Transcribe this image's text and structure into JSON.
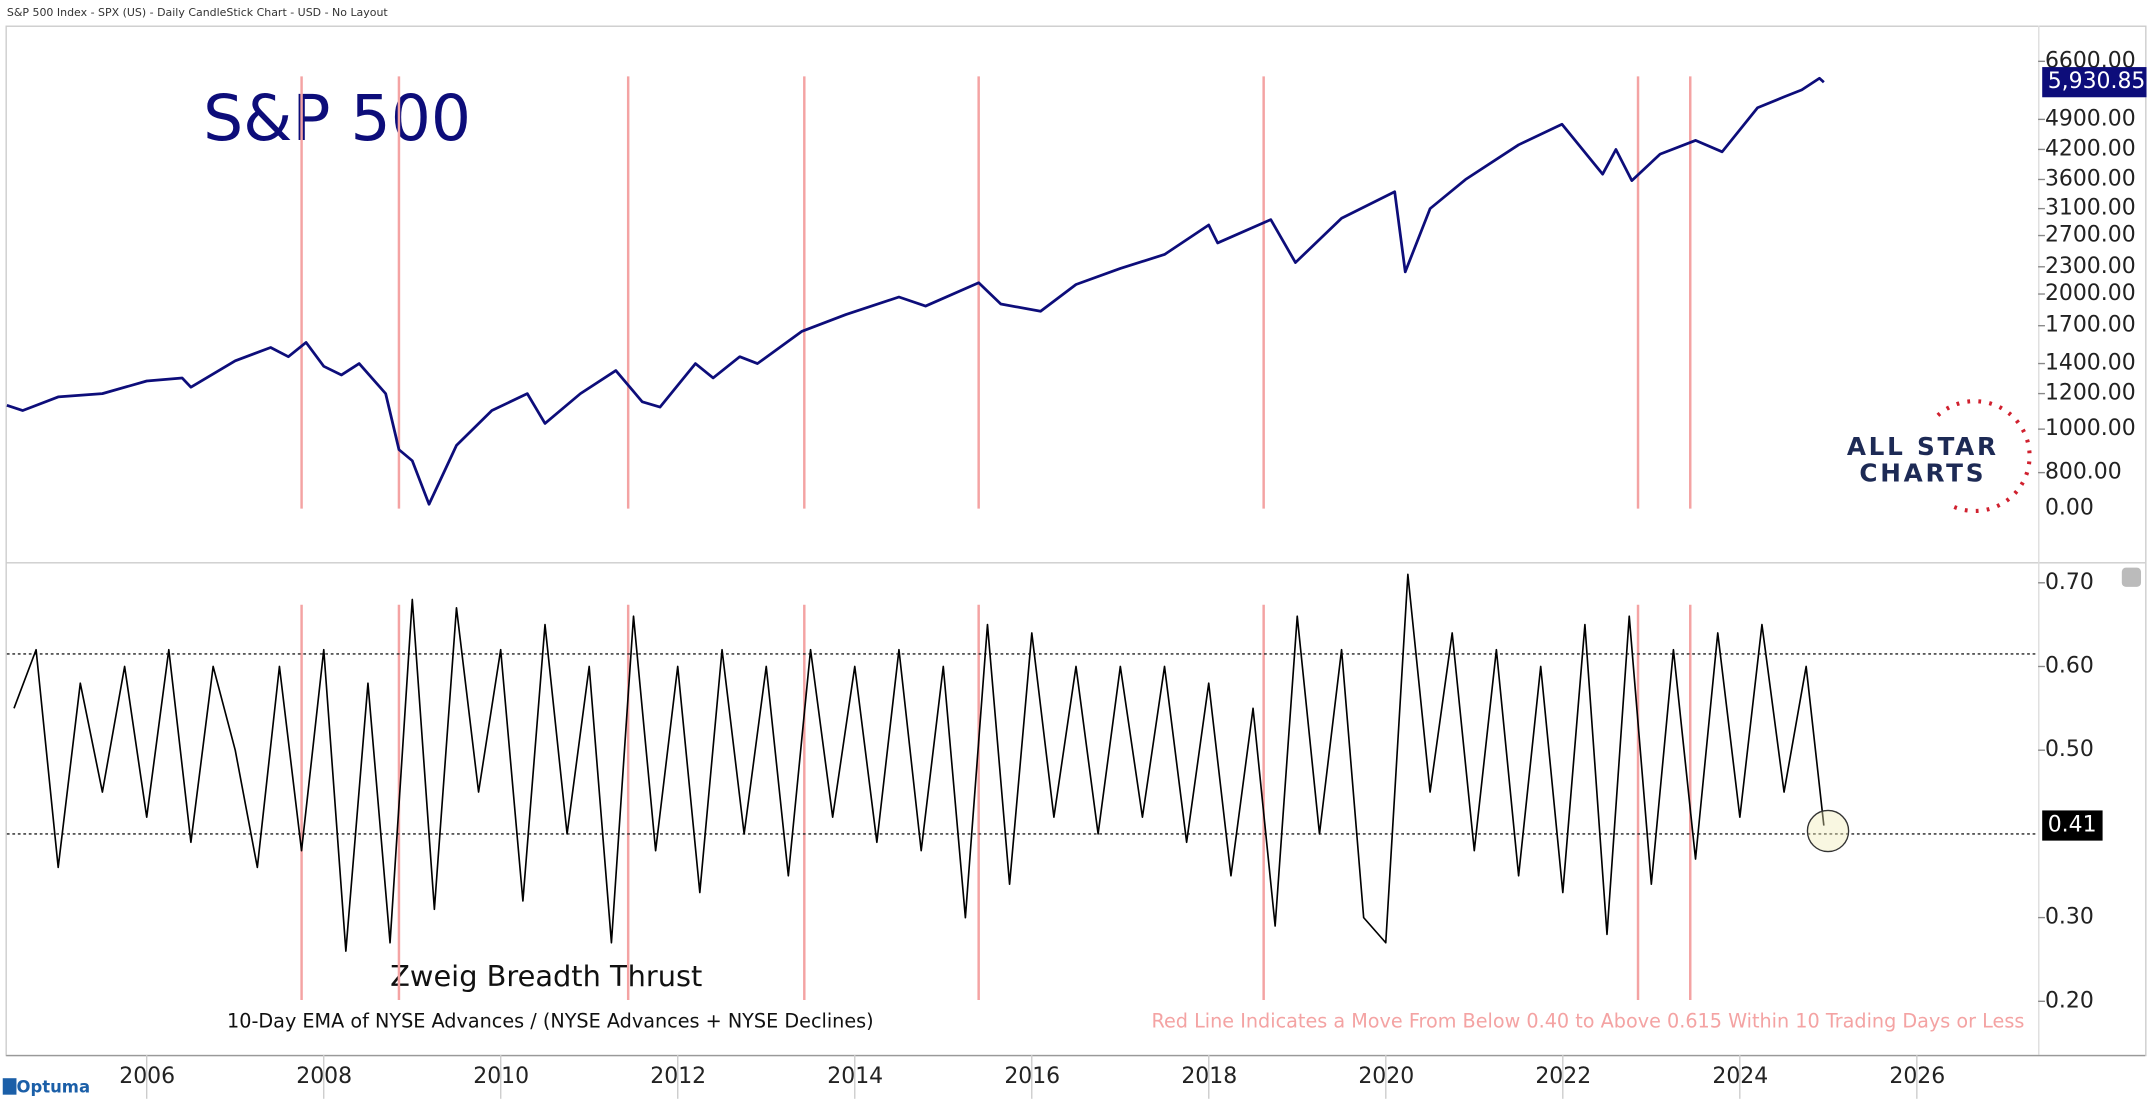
{
  "header": "S&P 500 Index - SPX (US) - Daily CandleStick Chart - USD - No Layout",
  "logo": {
    "line1": "ALL STAR",
    "line2": "CHARTS"
  },
  "brand": "Optuma",
  "chart_data": [
    {
      "type": "line",
      "title": "S&P 500",
      "color": "#0d0d7a",
      "log_scale": true,
      "xlim": [
        2004.42,
        2027.37
      ],
      "ylim": [
        665,
        8100
      ],
      "yticks": [
        {
          "value": 6600,
          "label": "6600.00"
        },
        {
          "value": 4900,
          "label": "4900.00"
        },
        {
          "value": 4200,
          "label": "4200.00"
        },
        {
          "value": 3600,
          "label": "3600.00"
        },
        {
          "value": 3100,
          "label": "3100.00"
        },
        {
          "value": 2700,
          "label": "2700.00"
        },
        {
          "value": 2300,
          "label": "2300.00"
        },
        {
          "value": 2000,
          "label": "2000.00"
        },
        {
          "value": 1700,
          "label": "1700.00"
        },
        {
          "value": 1400,
          "label": "1400.00"
        },
        {
          "value": 1200,
          "label": "1200.00"
        },
        {
          "value": 1000,
          "label": "1000.00"
        },
        {
          "value": 800,
          "label": "800.00"
        }
      ],
      "axis_floor_label": "0.00",
      "last_value": 5930.85,
      "last_value_label": "5,930.85",
      "event_x": [
        2007.75,
        2008.85,
        2011.44,
        2013.43,
        2015.4,
        2018.62,
        2022.85,
        2023.44
      ],
      "event_color": "#f4a3a3",
      "x": [
        2004.42,
        2004.6,
        2005,
        2005.5,
        2006,
        2006.4,
        2006.5,
        2007,
        2007.4,
        2007.6,
        2007.8,
        2008,
        2008.2,
        2008.4,
        2008.7,
        2008.85,
        2009.0,
        2009.19,
        2009.5,
        2009.9,
        2010.3,
        2010.5,
        2010.9,
        2011.3,
        2011.6,
        2011.8,
        2012.2,
        2012.4,
        2012.7,
        2012.9,
        2013.4,
        2013.9,
        2014.5,
        2014.8,
        2015.4,
        2015.65,
        2016.1,
        2016.5,
        2017,
        2017.5,
        2018.0,
        2018.1,
        2018.7,
        2018.98,
        2019.5,
        2020.1,
        2020.22,
        2020.5,
        2020.9,
        2021.5,
        2021.99,
        2022.45,
        2022.6,
        2022.78,
        2023.1,
        2023.5,
        2023.8,
        2024.2,
        2024.5,
        2024.7,
        2024.9,
        2024.95
      ],
      "values": [
        1130,
        1100,
        1180,
        1200,
        1280,
        1300,
        1240,
        1420,
        1520,
        1450,
        1560,
        1380,
        1320,
        1400,
        1200,
        900,
        850,
        680,
        920,
        1100,
        1200,
        1030,
        1200,
        1350,
        1150,
        1120,
        1400,
        1300,
        1450,
        1400,
        1650,
        1800,
        1970,
        1880,
        2120,
        1900,
        1830,
        2100,
        2280,
        2450,
        2850,
        2600,
        2930,
        2350,
        2950,
        3380,
        2240,
        3100,
        3600,
        4300,
        4780,
        3700,
        4200,
        3580,
        4100,
        4400,
        4150,
        5200,
        5500,
        5700,
        6050,
        5930
      ]
    },
    {
      "type": "line",
      "title": "Zweig Breadth Thrust",
      "subtitle": "10-Day EMA of NYSE Advances / (NYSE Advances + NYSE Declines)",
      "annotation": "Red Line Indicates a Move From Below 0.40 to Above 0.615 Within 10 Trading Days or Less",
      "color": "#000000",
      "xlim": [
        2004.42,
        2027.37
      ],
      "xticks": [
        2006,
        2008,
        2010,
        2012,
        2014,
        2016,
        2018,
        2020,
        2022,
        2024,
        2026
      ],
      "ylim": [
        0.136,
        0.723
      ],
      "yticks": [
        {
          "value": 0.7,
          "label": "0.70"
        },
        {
          "value": 0.6,
          "label": "0.60"
        },
        {
          "value": 0.5,
          "label": "0.50"
        },
        {
          "value": 0.3,
          "label": "0.30"
        },
        {
          "value": 0.2,
          "label": "0.20"
        }
      ],
      "thresholds": [
        0.615,
        0.4
      ],
      "last_value": 0.41,
      "last_value_label": "0.41",
      "x": [
        2004.5,
        2004.75,
        2005,
        2005.25,
        2005.5,
        2005.75,
        2006,
        2006.25,
        2006.5,
        2006.75,
        2007,
        2007.25,
        2007.5,
        2007.75,
        2008,
        2008.25,
        2008.5,
        2008.75,
        2009,
        2009.25,
        2009.5,
        2009.75,
        2010,
        2010.25,
        2010.5,
        2010.75,
        2011,
        2011.25,
        2011.5,
        2011.75,
        2012,
        2012.25,
        2012.5,
        2012.75,
        2013,
        2013.25,
        2013.5,
        2013.75,
        2014,
        2014.25,
        2014.5,
        2014.75,
        2015,
        2015.25,
        2015.5,
        2015.75,
        2016,
        2016.25,
        2016.5,
        2016.75,
        2017,
        2017.25,
        2017.5,
        2017.75,
        2018,
        2018.25,
        2018.5,
        2018.75,
        2019,
        2019.25,
        2019.5,
        2019.75,
        2020,
        2020.25,
        2020.5,
        2020.75,
        2021,
        2021.25,
        2021.5,
        2021.75,
        2022,
        2022.25,
        2022.5,
        2022.75,
        2023,
        2023.25,
        2023.5,
        2023.75,
        2024,
        2024.25,
        2024.5,
        2024.75,
        2024.95
      ],
      "values": [
        0.55,
        0.62,
        0.36,
        0.58,
        0.45,
        0.6,
        0.42,
        0.62,
        0.39,
        0.6,
        0.5,
        0.36,
        0.6,
        0.38,
        0.62,
        0.26,
        0.58,
        0.27,
        0.68,
        0.31,
        0.67,
        0.45,
        0.62,
        0.32,
        0.65,
        0.4,
        0.6,
        0.27,
        0.66,
        0.38,
        0.6,
        0.33,
        0.62,
        0.4,
        0.6,
        0.35,
        0.62,
        0.42,
        0.6,
        0.39,
        0.62,
        0.38,
        0.6,
        0.3,
        0.65,
        0.34,
        0.64,
        0.42,
        0.6,
        0.4,
        0.6,
        0.42,
        0.6,
        0.39,
        0.58,
        0.35,
        0.55,
        0.29,
        0.66,
        0.4,
        0.62,
        0.3,
        0.27,
        0.71,
        0.45,
        0.64,
        0.38,
        0.62,
        0.35,
        0.6,
        0.33,
        0.65,
        0.28,
        0.66,
        0.34,
        0.62,
        0.37,
        0.64,
        0.42,
        0.65,
        0.45,
        0.6,
        0.41
      ]
    }
  ]
}
